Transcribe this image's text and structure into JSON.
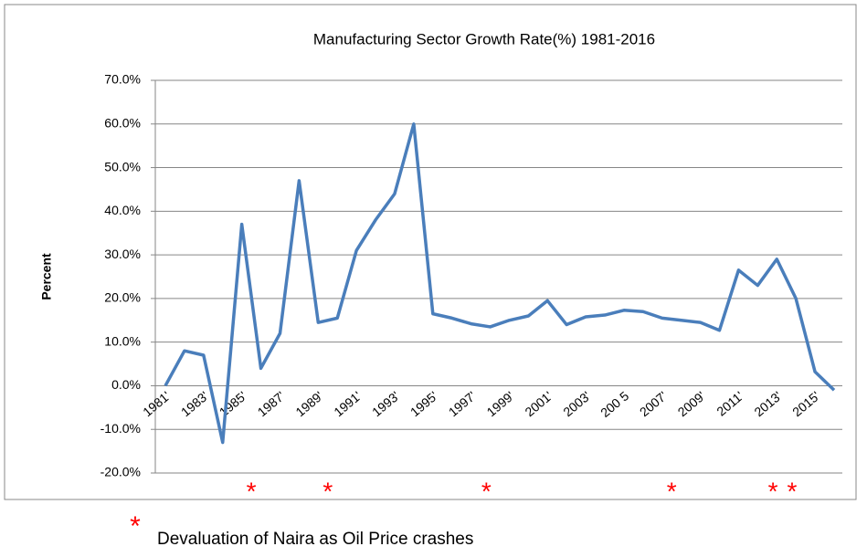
{
  "chart_data": {
    "type": "line",
    "title": "Manufacturing Sector Growth Rate(%) 1981-2016",
    "y_label": "Percent",
    "categories": [
      "1981'",
      null,
      "1983'",
      null,
      "1985'",
      null,
      "1987'",
      null,
      "1989'",
      null,
      "1991'",
      null,
      "1993'",
      null,
      "1995'",
      null,
      "1997'",
      null,
      "1999'",
      null,
      "2001'",
      null,
      "2003'",
      null,
      "200 5",
      null,
      "2007'",
      null,
      "2009'",
      null,
      "2011'",
      null,
      "2013'",
      null,
      "2015'",
      null
    ],
    "series": [
      {
        "name": "Manufacturing Sector Growth Rate",
        "color": "#4a7ebb",
        "values": [
          0,
          8,
          7,
          -13,
          37,
          4,
          12,
          47,
          14.5,
          15.5,
          31,
          38,
          44,
          60,
          16.5,
          15.5,
          14.2,
          13.5,
          15,
          16,
          19.5,
          14,
          15.8,
          16.2,
          17.3,
          17,
          15.5,
          15,
          14.5,
          12.7,
          26.5,
          23,
          29,
          20,
          3.2,
          -1
        ]
      }
    ],
    "ylim": [
      -20,
      70
    ],
    "yticks": [
      {
        "value": -20,
        "label": "-20.0%"
      },
      {
        "value": -10,
        "label": "-10.0%"
      },
      {
        "value": 0,
        "label": "0.0%"
      },
      {
        "value": 10,
        "label": "10.0%"
      },
      {
        "value": 20,
        "label": "20.0%"
      },
      {
        "value": 30,
        "label": "30.0%"
      },
      {
        "value": 40,
        "label": "40.0%"
      },
      {
        "value": 50,
        "label": "50.0%"
      },
      {
        "value": 60,
        "label": "60.0%"
      },
      {
        "value": 70,
        "label": "70.0%"
      }
    ],
    "grid": true,
    "markers": {
      "symbol": "*",
      "color": "#ff0000",
      "x": [
        4.5,
        8.5,
        16.8,
        26.5,
        31.8,
        32.8
      ],
      "legend": "Devaluation of Naira as Oil Price crashes"
    }
  }
}
